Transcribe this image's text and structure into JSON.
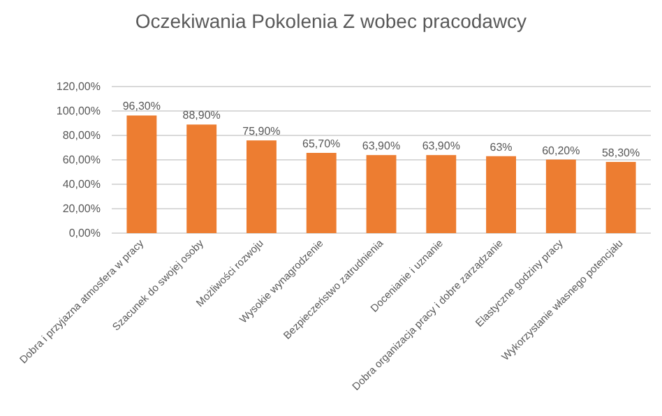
{
  "chart_data": {
    "type": "bar",
    "title": "Oczekiwania Pokolenia Z wobec pracodawcy",
    "categories": [
      "Dobra i przyjazna atmosfera w pracy",
      "Szacunek do swojej osoby",
      "Możliwości rozwoju",
      "Wysokie wynagrodzenie",
      "Bezpieczeństwo zatrudnienia",
      "Docenianie i uznanie",
      "Dobra organizacja pracy i dobre zarządzanie",
      "Elastyczne godziny pracy",
      "Wykorzystanie własnego potencjału"
    ],
    "values": [
      96.3,
      88.9,
      75.9,
      65.7,
      63.9,
      63.9,
      63,
      60.2,
      58.3
    ],
    "value_labels": [
      "96,30%",
      "88,90%",
      "75,90%",
      "65,70%",
      "63,90%",
      "63,90%",
      "63%",
      "60,20%",
      "58,30%"
    ],
    "color": "#ed7d31",
    "ylim": [
      0,
      120
    ],
    "yticks": [
      {
        "value": 0,
        "label": "0,00%"
      },
      {
        "value": 20,
        "label": "20,00%"
      },
      {
        "value": 40,
        "label": "40,00%"
      },
      {
        "value": 60,
        "label": "60,00%"
      },
      {
        "value": 80,
        "label": "80,00%"
      },
      {
        "value": 100,
        "label": "100,00%"
      },
      {
        "value": 120,
        "label": "120,00%"
      }
    ],
    "grid": "y"
  }
}
